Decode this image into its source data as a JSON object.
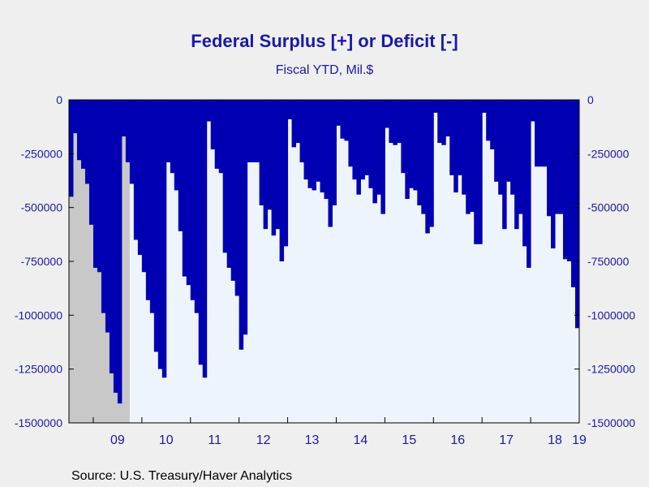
{
  "chart_data": {
    "type": "bar",
    "title": "Federal Surplus [+] or Deficit [-]",
    "subtitle": "Fiscal YTD, Mil.$",
    "source": "Source: U.S. Treasury/Haver Analytics",
    "xlabel": "",
    "ylabel": "",
    "ylim": [
      -1500000,
      0
    ],
    "yticks": [
      0,
      -250000,
      -500000,
      -750000,
      -1000000,
      -1250000,
      -1500000
    ],
    "ytick_labels": [
      "0",
      "-250000",
      "-500000",
      "-750000",
      "-1000000",
      "-1250000",
      "-1500000"
    ],
    "xtick_labels": [
      "09",
      "10",
      "11",
      "12",
      "13",
      "14",
      "15",
      "16",
      "17",
      "18",
      "19"
    ],
    "x_start": "2008-04",
    "recession": {
      "start": "2008-04",
      "end": "2009-06"
    },
    "colors": {
      "bar": "#0000b3",
      "plot_bg": "#eef4fb",
      "recession": "#c8c8c8",
      "text": "#1a1aa6"
    },
    "values": [
      -450000,
      -155000,
      -280000,
      -320000,
      -390000,
      -580000,
      -780000,
      -800000,
      -990000,
      -1080000,
      -1270000,
      -1360000,
      -1410000,
      -170000,
      -290000,
      -390000,
      -650000,
      -720000,
      -800000,
      -930000,
      -990000,
      -1170000,
      -1250000,
      -1290000,
      -290000,
      -340000,
      -420000,
      -610000,
      -820000,
      -860000,
      -930000,
      -990000,
      -1230000,
      -1290000,
      -100000,
      -230000,
      -320000,
      -340000,
      -710000,
      -780000,
      -840000,
      -910000,
      -1160000,
      -1090000,
      -290000,
      -290000,
      -290000,
      -490000,
      -600000,
      -510000,
      -630000,
      -600000,
      -750000,
      -680000,
      -90000,
      -220000,
      -200000,
      -290000,
      -370000,
      -410000,
      -420000,
      -380000,
      -430000,
      -460000,
      -590000,
      -490000,
      -120000,
      -180000,
      -190000,
      -310000,
      -370000,
      -440000,
      -370000,
      -350000,
      -410000,
      -480000,
      -440000,
      -530000,
      -130000,
      -200000,
      -210000,
      -200000,
      -340000,
      -460000,
      -410000,
      -420000,
      -490000,
      -530000,
      -620000,
      -590000,
      -60000,
      -200000,
      -210000,
      -170000,
      -350000,
      -430000,
      -350000,
      -440000,
      -530000,
      -520000,
      -670000,
      -670000,
      -60000,
      -190000,
      -230000,
      -380000,
      -440000,
      -600000,
      -380000,
      -440000,
      -600000,
      -530000,
      -680000,
      -780000,
      -100000,
      -310000,
      -310000,
      -310000,
      -540000,
      -690000,
      -530000,
      -530000,
      -740000,
      -750000,
      -870000,
      -1060000
    ]
  }
}
